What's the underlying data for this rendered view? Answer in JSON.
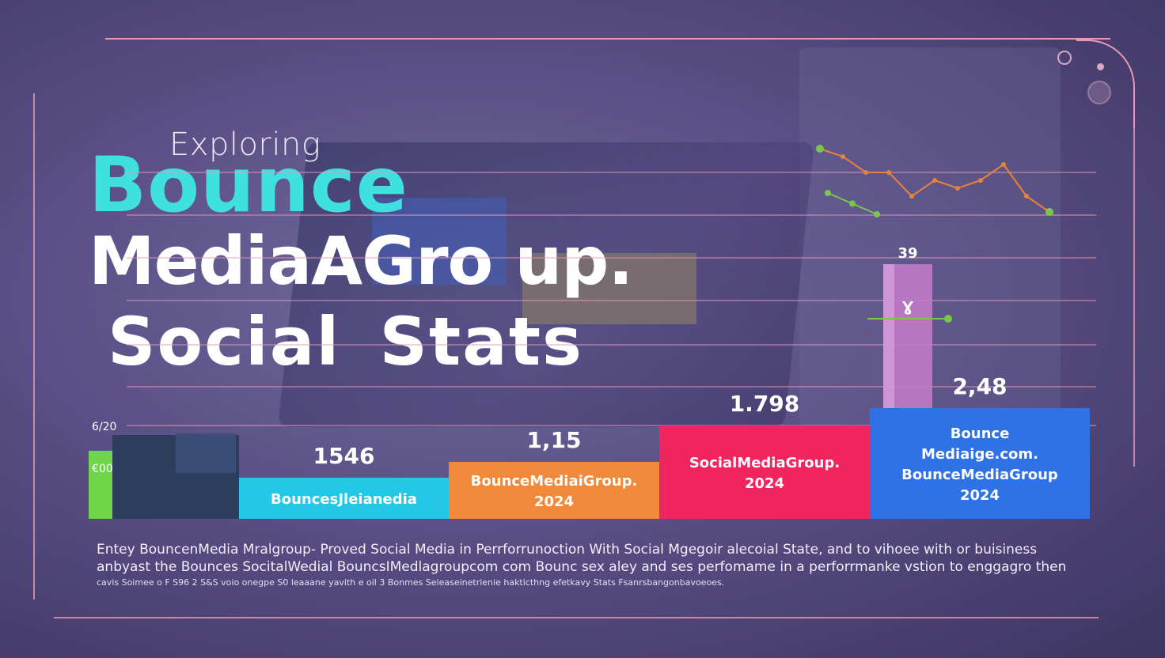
{
  "header": {
    "kicker": "Exploring",
    "brand": "Bounce",
    "line2": "MediaAGro up.",
    "line3": "Social Stats"
  },
  "colors": {
    "brand": "#3fe0e0",
    "frame": "#e49ab8",
    "bar_cyan": "#22c8e6",
    "bar_orange": "#f08a3a",
    "bar_pink": "#f0245e",
    "bar_blue": "#2f72e6",
    "bar_green": "#6fd64a",
    "tall_bar": "#c07ac8",
    "trend_orange": "#e8843a",
    "trend_green": "#7ac84a"
  },
  "chart_data": {
    "type": "bar",
    "y_tick_labels": [
      "6/20",
      "€00"
    ],
    "bars": [
      {
        "value_label": "",
        "lines": []
      },
      {
        "value_label": "1546",
        "lines": [
          "BouncesJleianedia"
        ]
      },
      {
        "value_label": "1,15",
        "lines": [
          "BounceMediaiGroup.",
          "2024"
        ]
      },
      {
        "value_label": "1.798",
        "lines": [
          "SocialMediaGroup.",
          "2024"
        ]
      },
      {
        "value_label": "2,48",
        "lines": [
          "Bounce",
          "Mediaige.com.",
          "BounceMediaGroup",
          "2024"
        ]
      }
    ],
    "values": [
      null,
      1546,
      1.15,
      1.798,
      2.48
    ],
    "highlight_bar": {
      "top_label": "39",
      "inner_label": "Ɣ"
    },
    "trend_series": [
      {
        "name": "",
        "color": "orange",
        "values": [
          8,
          7,
          5,
          5,
          2,
          4,
          3,
          4,
          6,
          2,
          0
        ]
      },
      {
        "name": "",
        "color": "green",
        "values": [
          6,
          3,
          0
        ]
      }
    ]
  },
  "footer": {
    "line1": "Entey BouncenMedia Mralgroup- Proved Social Media in Perrforrunoction With Social Mgegoir alecoial State, and to vihoee with or buisiness",
    "line2": "anbyast the Bounces SocitalWedial BouncsIMedlagroupcom com Bounc sex aley and ses perfomame in a perforrmanke vstion to enggagro then",
    "line3": "cavis Soimee o F S96 2 S&S voio onegpe S0 leaaane yavith e oil 3 Bonmes Seleaseinetrienie hakticthng efetkavy Stats Fsanrsbangonbavoeoes."
  }
}
